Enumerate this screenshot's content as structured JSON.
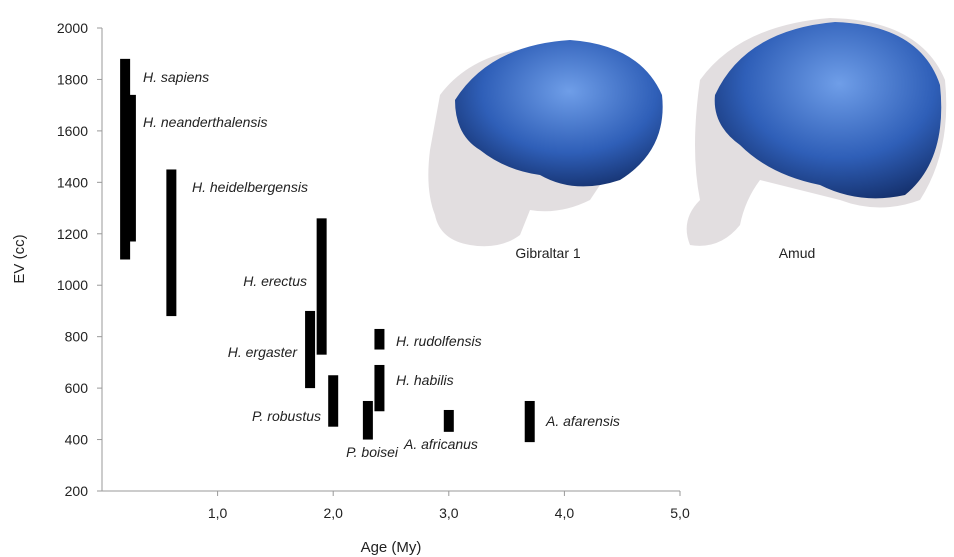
{
  "chart_data": {
    "type": "range-bar",
    "x_label": "Age (My)",
    "y_label": "EV (cc)",
    "labels": [
      "H. sapiens",
      "H. neanderthalensis",
      "H. heidelbergensis",
      "H. erectus",
      "H. ergaster",
      "H. rudolfensis",
      "H. habilis",
      "P. robustus",
      "P. boisei",
      "A. africanus",
      "A. afarensis"
    ],
    "x": [
      0.2,
      0.25,
      0.6,
      1.9,
      1.8,
      2.4,
      2.4,
      2.0,
      2.3,
      3.0,
      3.7
    ],
    "low": [
      1100,
      1170,
      880,
      730,
      600,
      750,
      510,
      450,
      400,
      430,
      390
    ],
    "high": [
      1880,
      1740,
      1450,
      1260,
      900,
      830,
      690,
      650,
      550,
      515,
      550
    ],
    "color": "#000000",
    "xlim": [
      0,
      5
    ],
    "ylim": [
      200,
      2000
    ],
    "xticks": [
      {
        "value": 1,
        "label": "1,0"
      },
      {
        "value": 2,
        "label": "2,0"
      },
      {
        "value": 3,
        "label": "3,0"
      },
      {
        "value": 4,
        "label": "4,0"
      },
      {
        "value": 5,
        "label": "5,0"
      }
    ],
    "yticks": [
      200,
      400,
      600,
      800,
      1000,
      1200,
      1400,
      1600,
      1800,
      2000
    ],
    "images": [
      "Gibraltar 1",
      "Amud"
    ]
  }
}
